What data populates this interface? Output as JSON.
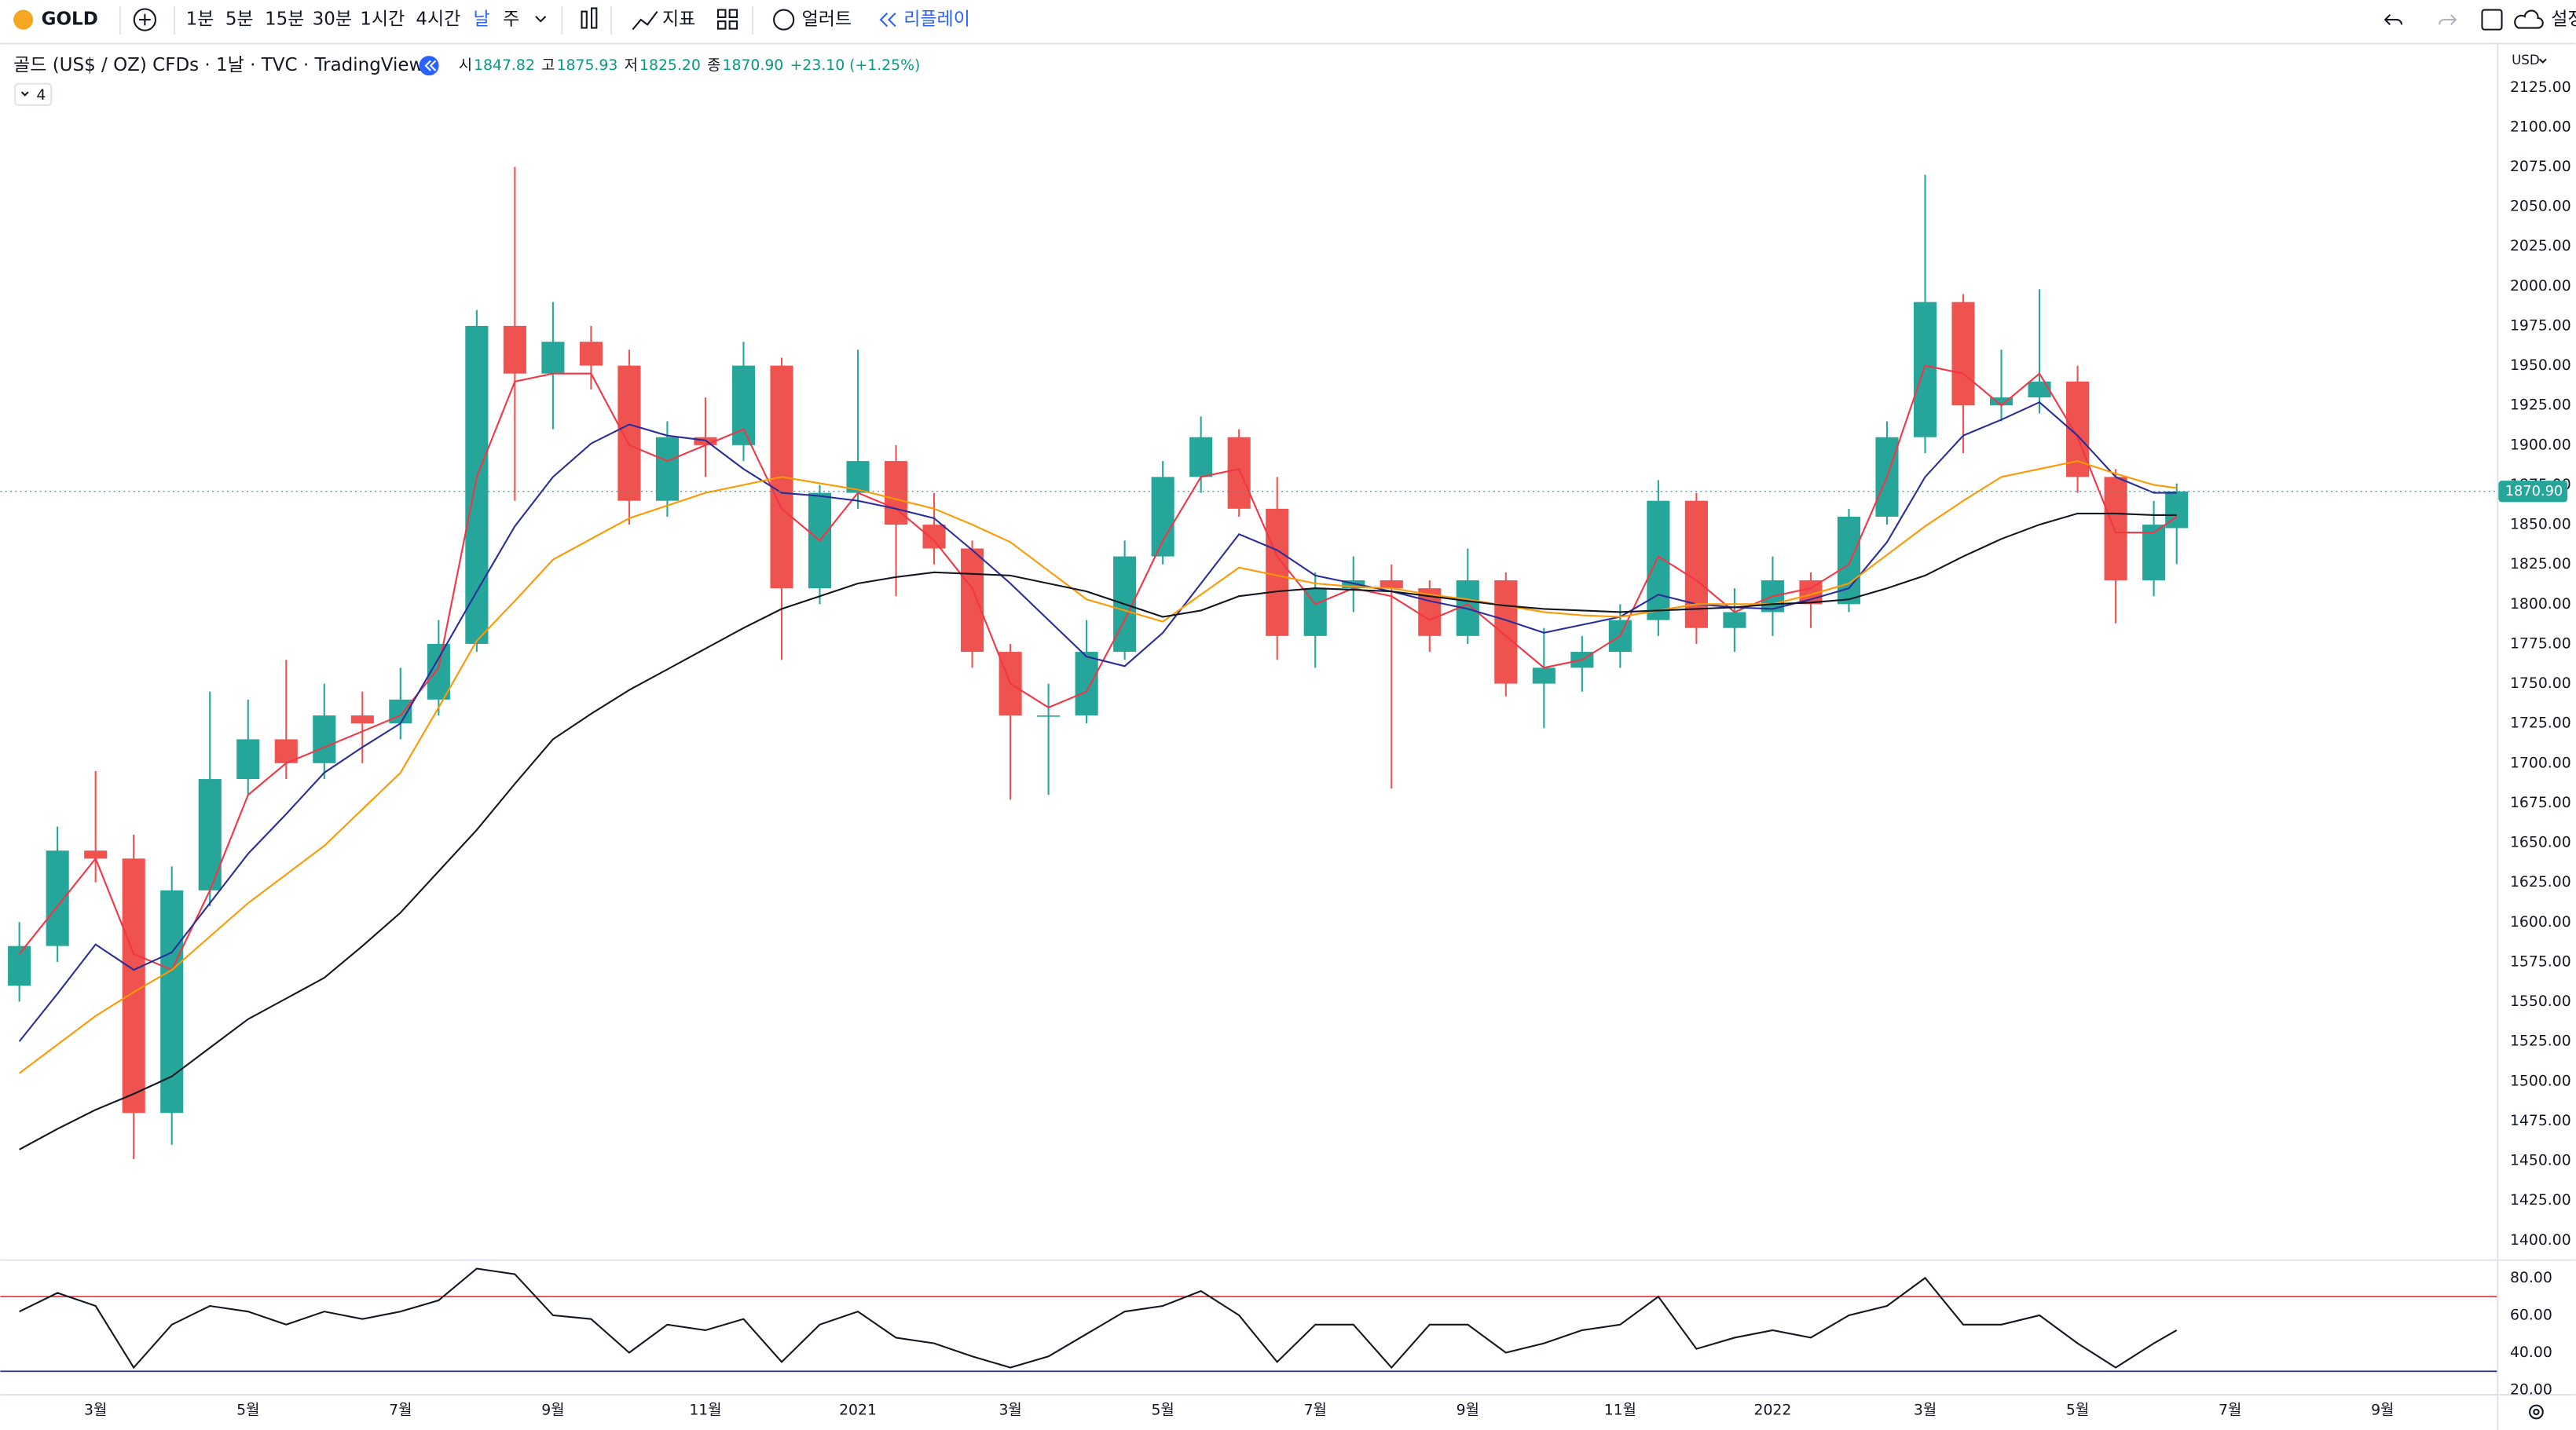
{
  "toolbar": {
    "symbol": "GOLD",
    "intervals": [
      "1분",
      "5분",
      "15분",
      "30분",
      "1시간",
      "4시간",
      "날",
      "주"
    ],
    "selected_interval": "날",
    "indicators": "지표",
    "alerts": "얼러트",
    "replay": "리플레이",
    "settings": "설정"
  },
  "header": {
    "title": "골드 (US$ / OZ) CFDs · 1날 · TVC · TradingView",
    "legend": [
      {
        "key": "시",
        "value": "1847.82"
      },
      {
        "key": "고",
        "value": "1875.93"
      },
      {
        "key": "저",
        "value": "1825.20"
      },
      {
        "key": "종",
        "value": "1870.90"
      }
    ],
    "change": "+23.10 (+1.25%)",
    "collapsed": "4",
    "currency": "USD"
  },
  "chart_data": [
    {
      "type": "candlestick",
      "up_color": "#26a69a",
      "down_color": "#ef5350",
      "x": [
        1,
        1.5,
        2,
        2.5,
        3,
        3.5,
        4,
        4.5,
        5,
        5.5,
        6,
        6.5,
        7,
        7.5,
        8,
        8.5,
        9,
        9.5,
        10,
        10.5,
        11,
        11.5,
        12,
        12.5,
        13,
        13.5,
        14,
        14.5,
        15,
        15.5,
        16,
        16.5,
        17,
        17.5,
        18,
        18.5,
        19,
        19.5,
        20,
        20.5,
        21,
        21.5,
        22,
        22.5,
        23,
        23.5,
        24,
        24.5,
        25,
        25.5,
        26,
        26.5,
        27,
        27.5,
        28,
        28.5,
        29,
        29.3
      ],
      "open": [
        1560,
        1585,
        1645,
        1640,
        1480,
        1620,
        1690,
        1715,
        1700,
        1730,
        1725,
        1740,
        1775,
        1975,
        1945,
        1965,
        1950,
        1865,
        1905,
        1900,
        1950,
        1810,
        1870,
        1890,
        1850,
        1835,
        1770,
        1730,
        1730,
        1770,
        1830,
        1880,
        1905,
        1860,
        1780,
        1810,
        1815,
        1810,
        1780,
        1815,
        1750,
        1760,
        1770,
        1790,
        1865,
        1785,
        1795,
        1815,
        1800,
        1855,
        1905,
        1990,
        1925,
        1930,
        1940,
        1880,
        1815,
        1847.82
      ],
      "high": [
        1600,
        1660,
        1695,
        1655,
        1635,
        1745,
        1740,
        1765,
        1750,
        1745,
        1760,
        1790,
        1985,
        2075,
        1990,
        1975,
        1960,
        1915,
        1930,
        1965,
        1955,
        1875,
        1960,
        1900,
        1870,
        1840,
        1775,
        1750,
        1790,
        1840,
        1890,
        1918,
        1910,
        1880,
        1820,
        1830,
        1825,
        1815,
        1835,
        1820,
        1785,
        1780,
        1800,
        1878,
        1870,
        1810,
        1830,
        1820,
        1860,
        1915,
        2070,
        1995,
        1960,
        1998,
        1950,
        1885,
        1865,
        1875.93
      ],
      "low": [
        1550,
        1575,
        1625,
        1451,
        1460,
        1610,
        1680,
        1690,
        1690,
        1700,
        1715,
        1730,
        1770,
        1865,
        1910,
        1935,
        1850,
        1855,
        1880,
        1890,
        1765,
        1800,
        1860,
        1805,
        1825,
        1760,
        1677,
        1680,
        1725,
        1765,
        1825,
        1870,
        1855,
        1765,
        1760,
        1795,
        1684,
        1770,
        1775,
        1742,
        1722,
        1745,
        1760,
        1780,
        1775,
        1770,
        1780,
        1785,
        1795,
        1850,
        1895,
        1895,
        1915,
        1920,
        1870,
        1788,
        1805,
        1825.2
      ],
      "close": [
        1585,
        1645,
        1640,
        1480,
        1620,
        1690,
        1715,
        1700,
        1730,
        1725,
        1740,
        1775,
        1975,
        1945,
        1965,
        1950,
        1865,
        1905,
        1900,
        1950,
        1810,
        1870,
        1890,
        1850,
        1835,
        1770,
        1730,
        1730,
        1770,
        1830,
        1880,
        1905,
        1860,
        1780,
        1810,
        1815,
        1810,
        1780,
        1815,
        1750,
        1760,
        1770,
        1790,
        1865,
        1785,
        1795,
        1815,
        1800,
        1855,
        1905,
        1990,
        1925,
        1930,
        1940,
        1880,
        1815,
        1850,
        1870.9
      ],
      "last_label": "1870.90",
      "last_color": "#26a69a",
      "series": [
        {
          "color": "#f23645",
          "values": [
            1580,
            1610,
            1640,
            1580,
            1570,
            1620,
            1680,
            1700,
            1710,
            1720,
            1730,
            1760,
            1880,
            1940,
            1945,
            1945,
            1900,
            1890,
            1900,
            1910,
            1860,
            1840,
            1870,
            1860,
            1840,
            1810,
            1750,
            1735,
            1745,
            1790,
            1840,
            1880,
            1885,
            1830,
            1800,
            1810,
            1805,
            1790,
            1800,
            1780,
            1760,
            1765,
            1780,
            1830,
            1815,
            1795,
            1805,
            1810,
            1825,
            1880,
            1950,
            1945,
            1925,
            1945,
            1905,
            1845,
            1845,
            1855
          ]
        },
        {
          "color": "#2a2e99",
          "values": [
            1525,
            1555,
            1586,
            1570,
            1581,
            1612,
            1643,
            1668,
            1694,
            1710,
            1725,
            1766,
            1808,
            1849,
            1880,
            1901,
            1913,
            1906,
            1903,
            1885,
            1870,
            1868,
            1865,
            1860,
            1854,
            1834,
            1813,
            1790,
            1767,
            1761,
            1782,
            1813,
            1844,
            1834,
            1818,
            1813,
            1808,
            1802,
            1797,
            1790,
            1782,
            1787,
            1792,
            1806,
            1800,
            1798,
            1797,
            1803,
            1810,
            1839,
            1880,
            1906,
            1916,
            1927,
            1906,
            1880,
            1870,
            1870
          ]
        },
        {
          "color": "#ff9800",
          "values": [
            1505,
            1523,
            1541,
            1556,
            1570,
            1591,
            1612,
            1630,
            1648,
            1671,
            1694,
            1735,
            1777,
            1802,
            1828,
            1841,
            1854,
            1862,
            1870,
            1875,
            1880,
            1876,
            1872,
            1866,
            1860,
            1850,
            1839,
            1821,
            1803,
            1796,
            1789,
            1806,
            1823,
            1818,
            1813,
            1811,
            1810,
            1806,
            1803,
            1799,
            1795,
            1793,
            1792,
            1796,
            1800,
            1800,
            1800,
            1806,
            1813,
            1831,
            1849,
            1865,
            1880,
            1885,
            1890,
            1882,
            1875,
            1873
          ]
        },
        {
          "color": "#131722",
          "values": [
            1457,
            1470,
            1482,
            1492,
            1503,
            1521,
            1539,
            1552,
            1565,
            1585,
            1606,
            1632,
            1658,
            1687,
            1715,
            1731,
            1746,
            1759,
            1772,
            1785,
            1797,
            1805,
            1813,
            1817,
            1820,
            1819,
            1818,
            1813,
            1808,
            1800,
            1792,
            1796,
            1805,
            1808,
            1810,
            1809,
            1808,
            1805,
            1802,
            1799,
            1797,
            1796,
            1795,
            1796,
            1797,
            1798,
            1800,
            1801,
            1803,
            1810,
            1818,
            1830,
            1841,
            1850,
            1857,
            1857,
            1856,
            1856
          ]
        }
      ],
      "xlim": [
        0.75,
        33.5
      ],
      "ylim": [
        1388,
        2150
      ],
      "yticks": [
        {
          "value": 2125,
          "label": "2125.00"
        },
        {
          "value": 2100,
          "label": "2100.00"
        },
        {
          "value": 2075,
          "label": "2075.00"
        },
        {
          "value": 2050,
          "label": "2050.00"
        },
        {
          "value": 2025,
          "label": "2025.00"
        },
        {
          "value": 2000,
          "label": "2000.00"
        },
        {
          "value": 1975,
          "label": "1975.00"
        },
        {
          "value": 1950,
          "label": "1950.00"
        },
        {
          "value": 1925,
          "label": "1925.00"
        },
        {
          "value": 1900,
          "label": "1900.00"
        },
        {
          "value": 1875,
          "label": "1875.00"
        },
        {
          "value": 1850,
          "label": "1850.00"
        },
        {
          "value": 1825,
          "label": "1825.00"
        },
        {
          "value": 1800,
          "label": "1800.00"
        },
        {
          "value": 1775,
          "label": "1775.00"
        },
        {
          "value": 1750,
          "label": "1750.00"
        },
        {
          "value": 1725,
          "label": "1725.00"
        },
        {
          "value": 1700,
          "label": "1700.00"
        },
        {
          "value": 1675,
          "label": "1675.00"
        },
        {
          "value": 1650,
          "label": "1650.00"
        },
        {
          "value": 1625,
          "label": "1625.00"
        },
        {
          "value": 1600,
          "label": "1600.00"
        },
        {
          "value": 1575,
          "label": "1575.00"
        },
        {
          "value": 1550,
          "label": "1550.00"
        },
        {
          "value": 1525,
          "label": "1525.00"
        },
        {
          "value": 1500,
          "label": "1500.00"
        },
        {
          "value": 1475,
          "label": "1475.00"
        },
        {
          "value": 1450,
          "label": "1450.00"
        },
        {
          "value": 1425,
          "label": "1425.00"
        },
        {
          "value": 1400,
          "label": "1400.00"
        }
      ],
      "xticks": [
        {
          "value": 2,
          "label": "3월"
        },
        {
          "value": 4,
          "label": "5월"
        },
        {
          "value": 6,
          "label": "7월"
        },
        {
          "value": 8,
          "label": "9월"
        },
        {
          "value": 10,
          "label": "11월"
        },
        {
          "value": 12,
          "label": "2021"
        },
        {
          "value": 14,
          "label": "3월"
        },
        {
          "value": 16,
          "label": "5월"
        },
        {
          "value": 18,
          "label": "7월"
        },
        {
          "value": 20,
          "label": "9월"
        },
        {
          "value": 22,
          "label": "11월"
        },
        {
          "value": 24,
          "label": "2022"
        },
        {
          "value": 26,
          "label": "3월"
        },
        {
          "value": 28,
          "label": "5월"
        },
        {
          "value": 30,
          "label": "7월"
        },
        {
          "value": 32,
          "label": "9월"
        }
      ]
    },
    {
      "type": "line",
      "color": "#131722",
      "x": [
        1,
        1.5,
        2,
        2.5,
        3,
        3.5,
        4,
        4.5,
        5,
        5.5,
        6,
        6.5,
        7,
        7.5,
        8,
        8.5,
        9,
        9.5,
        10,
        10.5,
        11,
        11.5,
        12,
        12.5,
        13,
        13.5,
        14,
        14.5,
        15,
        15.5,
        16,
        16.5,
        17,
        17.5,
        18,
        18.5,
        19,
        19.5,
        20,
        20.5,
        21,
        21.5,
        22,
        22.5,
        23,
        23.5,
        24,
        24.5,
        25,
        25.5,
        26,
        26.5,
        27,
        27.5,
        28,
        28.5,
        29,
        29.3
      ],
      "values": [
        62,
        72,
        65,
        32,
        55,
        65,
        62,
        55,
        62,
        58,
        62,
        68,
        85,
        82,
        60,
        58,
        40,
        55,
        52,
        58,
        35,
        55,
        62,
        48,
        45,
        38,
        32,
        38,
        50,
        62,
        65,
        73,
        60,
        35,
        55,
        55,
        32,
        55,
        55,
        40,
        45,
        52,
        55,
        70,
        42,
        48,
        52,
        48,
        60,
        65,
        80,
        55,
        55,
        60,
        45,
        32,
        45,
        52
      ],
      "bands": [
        {
          "value": 70,
          "color": "#f23645"
        },
        {
          "value": 30,
          "color": "#2a2e99"
        }
      ],
      "xlim": [
        0.75,
        33.5
      ],
      "ylim": [
        10,
        90
      ],
      "yticks": [
        {
          "value": 80,
          "label": "80.00"
        },
        {
          "value": 60,
          "label": "60.00"
        },
        {
          "value": 40,
          "label": "40.00"
        },
        {
          "value": 20,
          "label": "20.00"
        }
      ]
    }
  ]
}
